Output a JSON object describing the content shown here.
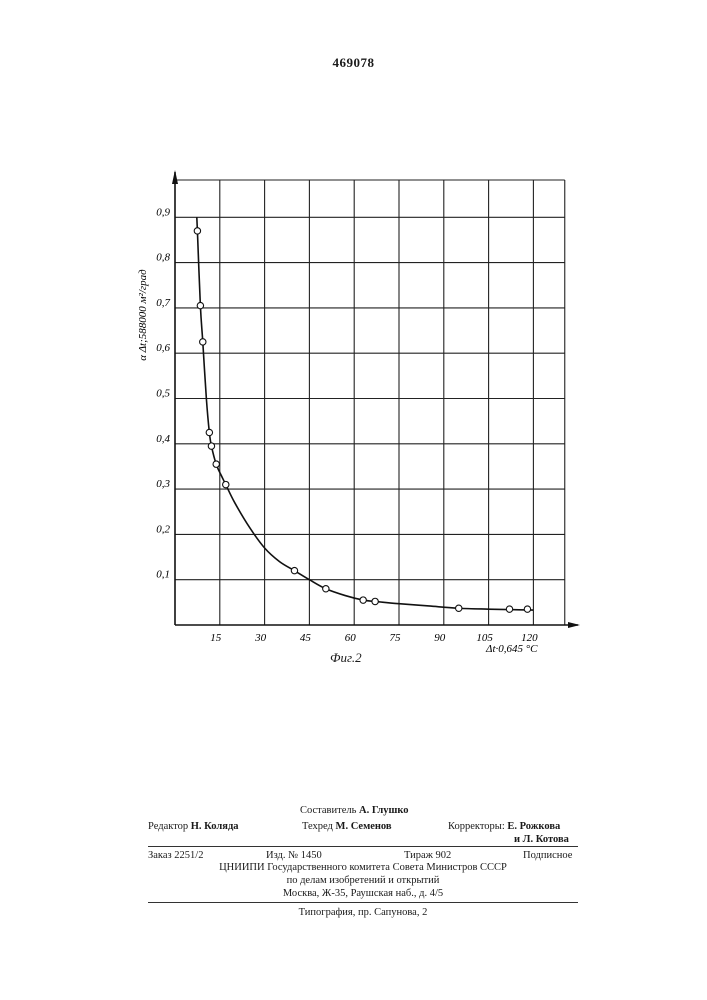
{
  "document": {
    "patent_number": "469078",
    "figure_caption": "Фиг.2"
  },
  "chart_data": {
    "type": "scatter",
    "title": "",
    "ylabel": "α Δt;588000 м²/град",
    "xlabel": "Δt·0,645 °C",
    "x_ticks": [
      "15",
      "30",
      "45",
      "60",
      "75",
      "90",
      "105",
      "120"
    ],
    "y_ticks": [
      "0,1",
      "0,2",
      "0,3",
      "0,4",
      "0,5",
      "0,6",
      "0,7",
      "0,8",
      "0,9"
    ],
    "xlim": [
      0,
      130
    ],
    "ylim": [
      0,
      0.98
    ],
    "grid": true,
    "series": [
      {
        "marker": "open-circle",
        "x": [
          7.5,
          8.5,
          9.3,
          11.5,
          12.2,
          13.8,
          17,
          40,
          50.5,
          63,
          67,
          95,
          112,
          118
        ],
        "y": [
          0.87,
          0.705,
          0.625,
          0.425,
          0.395,
          0.355,
          0.31,
          0.12,
          0.08,
          0.055,
          0.052,
          0.037,
          0.035,
          0.035
        ]
      }
    ],
    "curve": {
      "x": [
        7.3,
        7.5,
        8.5,
        9.3,
        10.5,
        11.5,
        12.2,
        13.8,
        15.5,
        17,
        20,
        25,
        30,
        35,
        40,
        45,
        50.5,
        57,
        63,
        67,
        75,
        85,
        95,
        105,
        112,
        120
      ],
      "y": [
        0.9,
        0.87,
        0.705,
        0.625,
        0.5,
        0.425,
        0.395,
        0.355,
        0.33,
        0.31,
        0.27,
        0.215,
        0.17,
        0.14,
        0.12,
        0.1,
        0.08,
        0.065,
        0.055,
        0.052,
        0.047,
        0.042,
        0.037,
        0.035,
        0.034,
        0.033
      ]
    }
  },
  "imprint": {
    "compiler": {
      "label": "Составитель",
      "name": "А. Глушко"
    },
    "editor": {
      "label": "Редактор",
      "name": "Н. Коляда"
    },
    "tech_editor": {
      "label": "Техред",
      "name": "М. Семенов"
    },
    "correctors": {
      "label": "Корректоры:",
      "name1": "Е. Рожкова",
      "name2": "и Л. Котова"
    },
    "order": "Заказ 2251/2",
    "edition_no": "Изд. № 1450",
    "print_run": "Тираж 902",
    "subscription": "Подписное",
    "org_line1": "ЦНИИПИ Государственного комитета Совета Министров СССР",
    "org_line2": "по делам изобретений и открытий",
    "address": "Москва, Ж-35, Раушская наб., д. 4/5",
    "printer": "Типография, пр. Сапунова, 2"
  }
}
